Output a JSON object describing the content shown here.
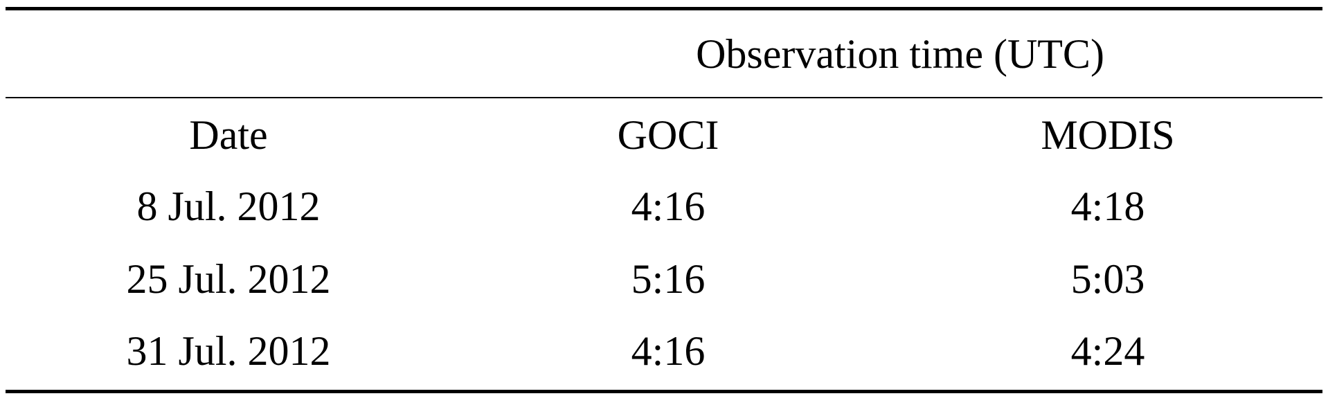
{
  "table": {
    "super_header": "Observation time (UTC)",
    "columns": [
      "Date",
      "GOCI",
      "MODIS"
    ],
    "rows": [
      [
        "8 Jul. 2012",
        "4:16",
        "4:18"
      ],
      [
        "25 Jul. 2012",
        "5:16",
        "5:03"
      ],
      [
        "31 Jul. 2012",
        "4:16",
        "4:24"
      ]
    ]
  }
}
